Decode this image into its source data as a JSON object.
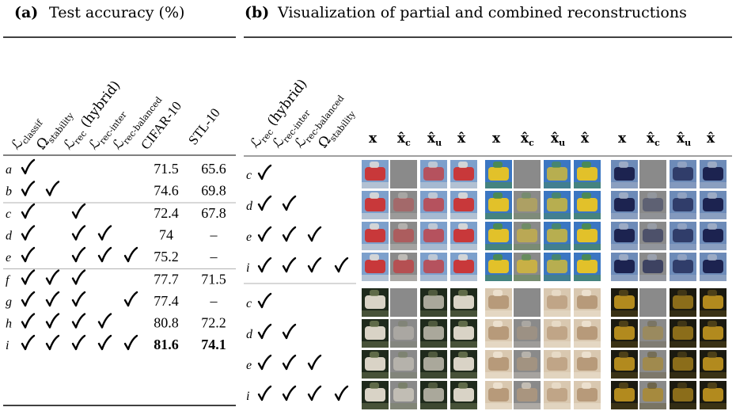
{
  "panel_a": {
    "label": "(a)",
    "title": "Test accuracy (%)",
    "criteria": [
      {
        "symbol": "ℒ",
        "sub": "classif"
      },
      {
        "symbol": "Ω",
        "sub": "stability"
      },
      {
        "symbol": "ℒ",
        "sub": "rec",
        "suffix": " (hybrid)"
      },
      {
        "symbol": "ℒ",
        "sub": "rec-inter"
      },
      {
        "symbol": "ℒ",
        "sub": "rec-balanced"
      }
    ],
    "datasets": [
      "CIFAR-10",
      "STL-10"
    ],
    "groups": [
      [
        {
          "id": "a",
          "checks": [
            true,
            false,
            false,
            false,
            false
          ],
          "scores": [
            71.5,
            65.6
          ]
        },
        {
          "id": "b",
          "checks": [
            true,
            true,
            false,
            false,
            false
          ],
          "scores": [
            74.6,
            69.8
          ]
        }
      ],
      [
        {
          "id": "c",
          "checks": [
            true,
            false,
            true,
            false,
            false
          ],
          "scores": [
            72.4,
            67.8
          ]
        },
        {
          "id": "d",
          "checks": [
            true,
            false,
            true,
            true,
            false
          ],
          "scores": [
            74.0,
            "–"
          ]
        },
        {
          "id": "e",
          "checks": [
            true,
            false,
            true,
            true,
            true
          ],
          "scores": [
            75.2,
            "–"
          ]
        }
      ],
      [
        {
          "id": "f",
          "checks": [
            true,
            true,
            true,
            false,
            false
          ],
          "scores": [
            77.7,
            71.5
          ]
        },
        {
          "id": "g",
          "checks": [
            true,
            true,
            true,
            false,
            true
          ],
          "scores": [
            77.4,
            "–"
          ]
        },
        {
          "id": "h",
          "checks": [
            true,
            true,
            true,
            true,
            false
          ],
          "scores": [
            80.8,
            72.2
          ]
        },
        {
          "id": "i",
          "checks": [
            true,
            true,
            true,
            true,
            true
          ],
          "scores": [
            81.6,
            74.1
          ],
          "bold": true
        }
      ]
    ]
  },
  "panel_b": {
    "label": "(b)",
    "title": "Visualization of partial and combined reconstructions",
    "criteria": [
      {
        "symbol": "ℒ",
        "sub": "rec",
        "suffix": " (hybrid)"
      },
      {
        "symbol": "ℒ",
        "sub": "rec-inter"
      },
      {
        "symbol": "ℒ",
        "sub": "rec-balanced"
      },
      {
        "symbol": "Ω",
        "sub": "stability"
      }
    ],
    "image_headers": [
      {
        "base": "x"
      },
      {
        "base": "x̂",
        "sub": "c"
      },
      {
        "base": "x̂",
        "sub": "u"
      },
      {
        "base": "x̂"
      },
      {
        "base": "x"
      },
      {
        "base": "x̂",
        "sub": "c"
      },
      {
        "base": "x̂",
        "sub": "u"
      },
      {
        "base": "x̂"
      },
      {
        "base": "x"
      },
      {
        "base": "x̂",
        "sub": "c"
      },
      {
        "base": "x̂",
        "sub": "u"
      },
      {
        "base": "x̂"
      }
    ],
    "blocks": [
      [
        {
          "id": "c",
          "checks": [
            true,
            false,
            false,
            false
          ]
        },
        {
          "id": "d",
          "checks": [
            true,
            true,
            false,
            false
          ]
        },
        {
          "id": "e",
          "checks": [
            true,
            true,
            true,
            false
          ]
        },
        {
          "id": "i",
          "checks": [
            true,
            true,
            true,
            true
          ]
        }
      ],
      [
        {
          "id": "c",
          "checks": [
            true,
            false,
            false,
            false
          ]
        },
        {
          "id": "d",
          "checks": [
            true,
            true,
            false,
            false
          ]
        },
        {
          "id": "e",
          "checks": [
            true,
            true,
            true,
            false
          ]
        },
        {
          "id": "i",
          "checks": [
            true,
            true,
            true,
            true
          ]
        }
      ]
    ]
  }
}
